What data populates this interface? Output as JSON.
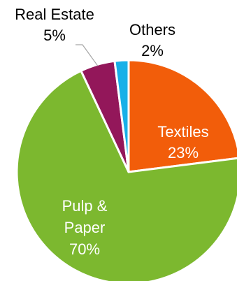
{
  "chart_data": {
    "type": "pie",
    "title": "",
    "slices": [
      {
        "label": "Textiles",
        "value": 23,
        "value_label": "23%",
        "color": "#f25d0a",
        "text_color": "#ffffff"
      },
      {
        "label": "Pulp & Paper",
        "value": 70,
        "value_label": "70%",
        "color": "#7cb82f",
        "text_color": "#ffffff"
      },
      {
        "label": "Real Estate",
        "value": 5,
        "value_label": "5%",
        "color": "#93175a",
        "text_color": "#000000"
      },
      {
        "label": "Others",
        "value": 2,
        "value_label": "2%",
        "color": "#17b0e8",
        "text_color": "#000000"
      }
    ],
    "leader_line_color": "#a6a6a6"
  }
}
